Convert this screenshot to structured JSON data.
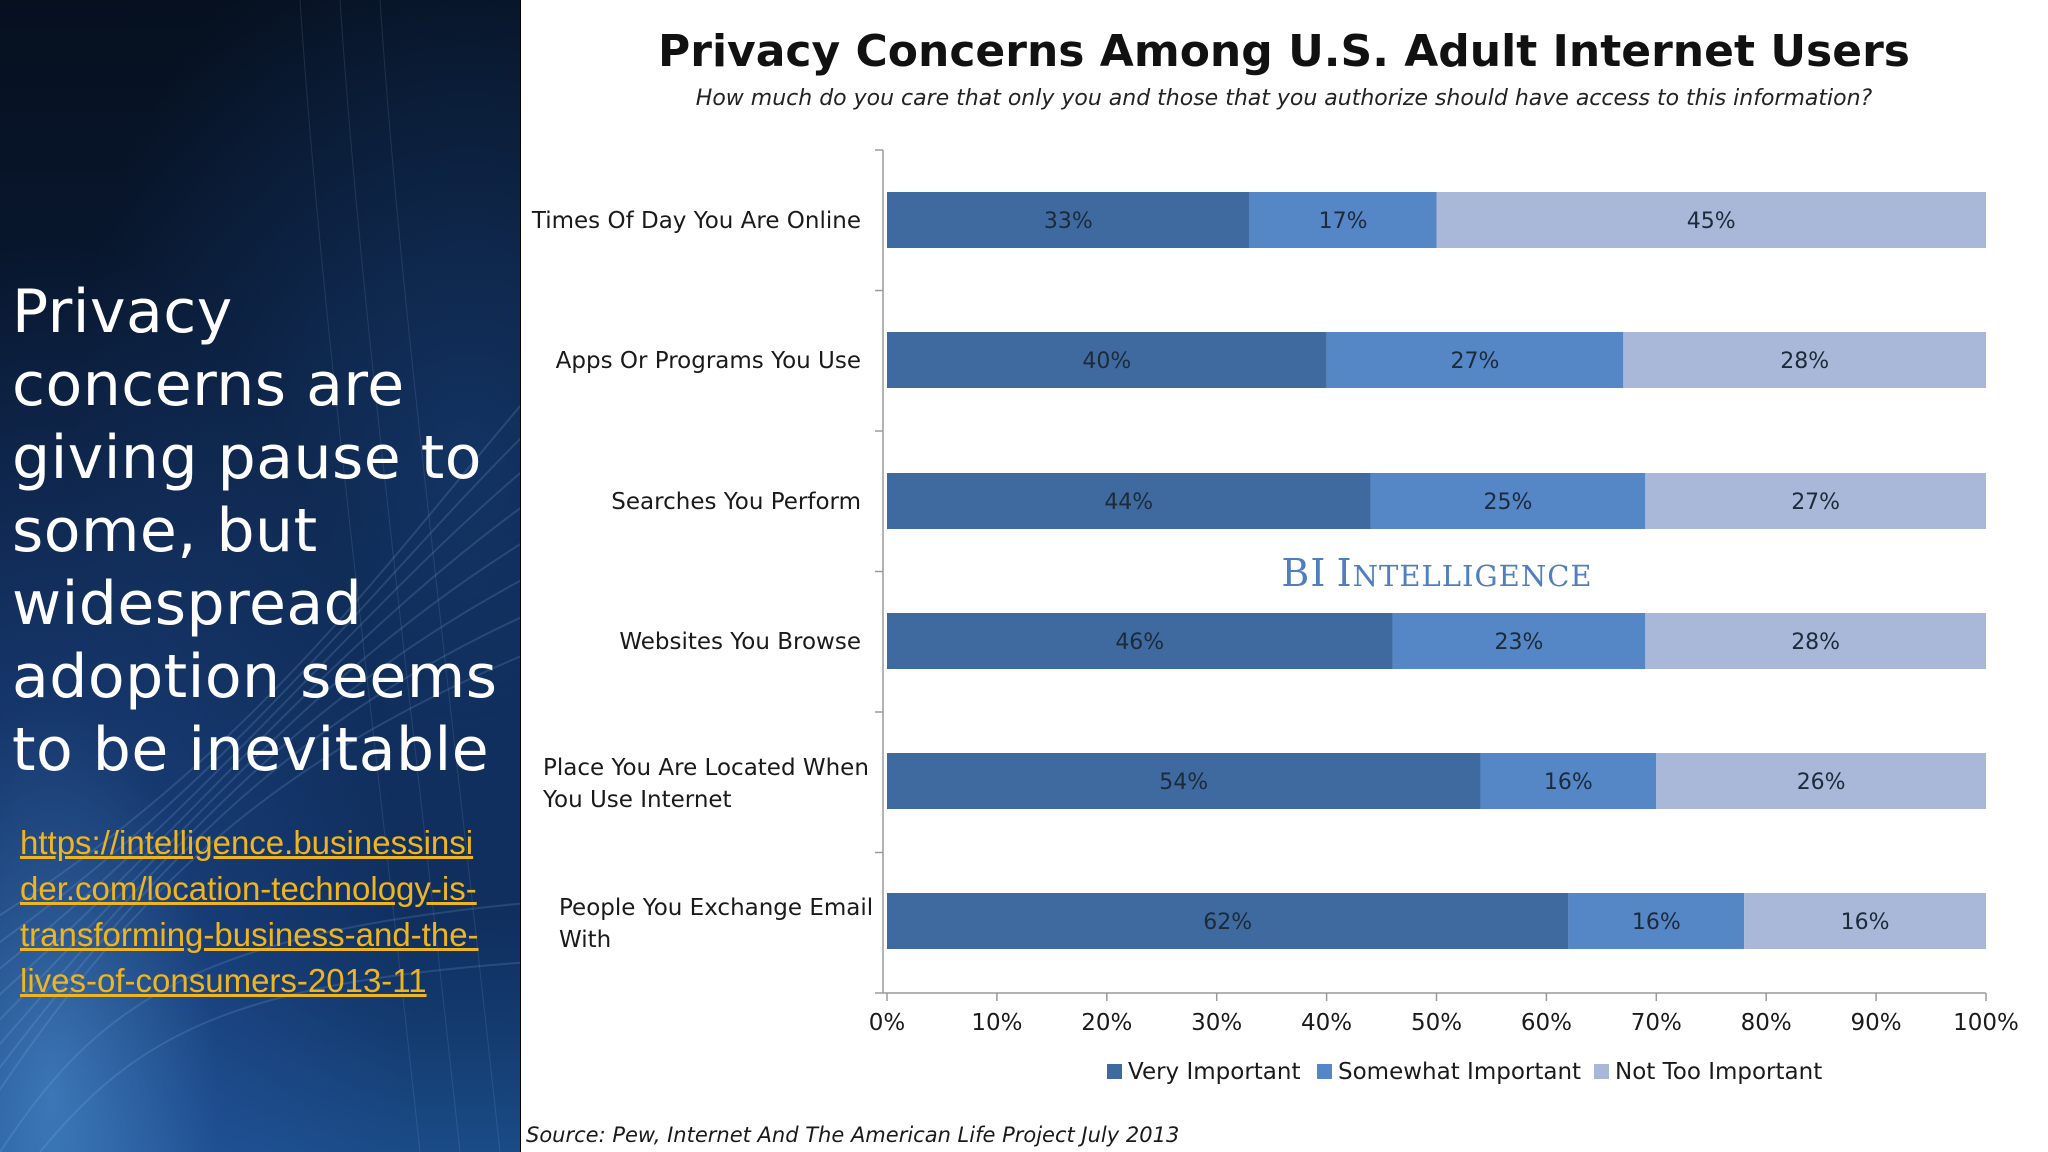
{
  "headline": "Privacy concerns are giving pause to some, but widespread adoption seems to be inevitable",
  "source_link": "https://intelligence.businessinsider.com/location-technology-is-transforming-business-and-the-lives-of-consumers-2013-11",
  "watermark": "BI Intelligence",
  "source_note": "Source: Pew, Internet And The American Life Project July 2013",
  "colors": {
    "very_important": "#3f6aa0",
    "somewhat_important": "#5587c6",
    "not_too_important": "#a9b8d9"
  },
  "chart_data": {
    "type": "bar",
    "orientation": "horizontal",
    "stacked": true,
    "title": "Privacy Concerns Among U.S. Adult Internet Users",
    "subtitle": "How much do you care that only you and those that you authorize should have access to this information?",
    "categories": [
      [
        "Times Of Day You Are Online"
      ],
      [
        "Apps Or Programs You Use"
      ],
      [
        "Searches You Perform"
      ],
      [
        "Websites You Browse"
      ],
      [
        "Place You Are Located When",
        "You Use Internet"
      ],
      [
        "People You Exchange Email",
        "With"
      ]
    ],
    "series": [
      {
        "name": "Very Important",
        "values": [
          33,
          40,
          44,
          46,
          54,
          62
        ]
      },
      {
        "name": "Somewhat Important",
        "values": [
          17,
          27,
          25,
          23,
          16,
          16
        ]
      },
      {
        "name": "Not Too Important",
        "values": [
          45,
          28,
          27,
          28,
          26,
          16
        ]
      }
    ],
    "value_labels": [
      [
        "33%",
        "17%",
        "45%"
      ],
      [
        "40%",
        "27%",
        "28%"
      ],
      [
        "44%",
        "25%",
        "27%"
      ],
      [
        "46%",
        "23%",
        "28%"
      ],
      [
        "54%",
        "16%",
        "26%"
      ],
      [
        "62%",
        "16%",
        "16%"
      ]
    ],
    "xlim": [
      0,
      100
    ],
    "x_ticks": [
      "0%",
      "10%",
      "20%",
      "30%",
      "40%",
      "50%",
      "60%",
      "70%",
      "80%",
      "90%",
      "100%"
    ],
    "legend_position": "bottom",
    "grid": false
  }
}
